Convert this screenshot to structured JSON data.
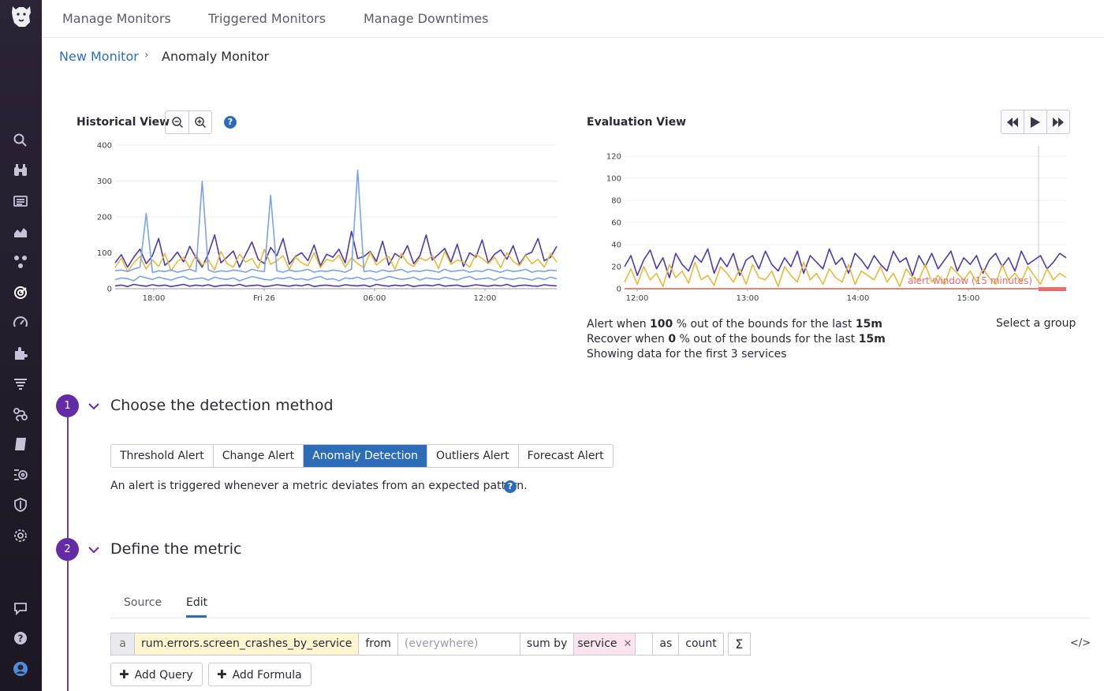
{
  "colors": {
    "brand_purple": "#632ca6",
    "link_blue": "#2d6db8",
    "series_indigo": "#4b3bad",
    "series_yellow": "#e8b93a",
    "series_blue": "#7aa3ea",
    "series_magenta": "#c82fd1",
    "series_orange": "#e8804a",
    "alert_red": "#e56b73"
  },
  "topnav": {
    "tabs": [
      "Manage Monitors",
      "Triggered Monitors",
      "Manage Downtimes"
    ]
  },
  "breadcrumb": {
    "parent": "New Monitor",
    "current": "Anomaly Monitor"
  },
  "historical": {
    "title": "Historical View",
    "zoom_out_icon": "zoom-out-icon",
    "zoom_in_icon": "zoom-in-icon",
    "help": "?"
  },
  "evaluation": {
    "title": "Evaluation View",
    "alert_window_label": "alert window (15 minutes)",
    "alert_line": {
      "prefix": "Alert when",
      "pct": "100",
      "mid": "% out of the bounds for the last",
      "window": "15m"
    },
    "recover_line": {
      "prefix": "Recover when",
      "pct": "0",
      "mid": "% out of the bounds for the last",
      "window": "15m"
    },
    "showing": "Showing data for the first 3 services",
    "select_group": "Select a group"
  },
  "chart_data": [
    {
      "type": "line",
      "y_ticks": [
        "400",
        "300",
        "200",
        "100",
        "0"
      ],
      "x_ticks": [
        "18:00",
        "Fri 26",
        "06:00",
        "12:00"
      ],
      "ylim": [
        0,
        400
      ],
      "series": [
        {
          "values": [
            72,
            95,
            60,
            88,
            110,
            70,
            92,
            140,
            65,
            80,
            102,
            75,
            118,
            86,
            60,
            98,
            150,
            72,
            88,
            105,
            60,
            96,
            130,
            82,
            70,
            115,
            92,
            140,
            68,
            90,
            100,
            78,
            122,
            64,
            96,
            88,
            110,
            72,
            160,
            84,
            90,
            104,
            76,
            132,
            66,
            98,
            86,
            120,
            70,
            92,
            150,
            80,
            96,
            112,
            74,
            124,
            62,
            100,
            88,
            136,
            72,
            96,
            108,
            82,
            120,
            68,
            94,
            102,
            140,
            78,
            88,
            118
          ]
        },
        {
          "values": [
            60,
            85,
            48,
            72,
            90,
            55,
            80,
            62,
            98,
            50,
            76,
            88,
            58,
            94,
            66,
            80,
            52,
            104,
            70,
            60,
            96,
            74,
            84,
            56,
            110,
            68,
            78,
            92,
            54,
            88,
            72,
            64,
            100,
            58,
            82,
            76,
            94,
            60,
            86,
            70,
            58,
            102,
            66,
            80,
            90,
            54,
            98,
            72,
            62,
            86,
            78,
            92,
            56,
            104,
            68,
            80,
            74,
            60,
            96,
            84,
            70,
            88,
            58,
            100,
            76,
            64,
            92,
            70,
            82,
            60,
            98,
            74
          ]
        },
        {
          "values": [
            50,
            52,
            48,
            55,
            60,
            210,
            45,
            50,
            48,
            52,
            46,
            50,
            54,
            48,
            300,
            52,
            46,
            50,
            48,
            52,
            50,
            46,
            54,
            50,
            48,
            260,
            50,
            46,
            52,
            48,
            50,
            54,
            46,
            50,
            48,
            52,
            50,
            46,
            54,
            330,
            48,
            50,
            46,
            52,
            48,
            50,
            54,
            46,
            50,
            48,
            52,
            50,
            46,
            54,
            48,
            50,
            52,
            46,
            50,
            48,
            54,
            50,
            46,
            52,
            48,
            50,
            54,
            46,
            50,
            48,
            52,
            50
          ]
        },
        {
          "values": [
            25,
            30,
            28,
            22,
            35,
            30,
            26,
            32,
            28,
            24,
            30,
            34,
            26,
            28,
            30,
            24,
            32,
            28,
            26,
            30,
            22,
            28,
            34,
            30,
            26,
            24,
            30,
            28,
            32,
            26,
            28,
            24,
            30,
            34,
            26,
            28,
            22,
            30,
            28,
            32,
            26,
            30,
            24,
            28,
            34,
            30,
            26,
            28,
            32,
            24,
            30,
            28,
            26,
            32,
            28,
            24,
            30,
            34,
            26,
            28,
            30,
            24,
            32,
            28,
            26,
            30,
            28,
            24,
            30,
            26,
            32,
            28
          ]
        },
        {
          "values": [
            8,
            10,
            6,
            12,
            9,
            7,
            11,
            8,
            10,
            6,
            9,
            12,
            7,
            10,
            8,
            11,
            6,
            9,
            10,
            8,
            12,
            7,
            9,
            10,
            6,
            8,
            11,
            9,
            7,
            10,
            8,
            12,
            6,
            9,
            10,
            8,
            7,
            11,
            9,
            8,
            10,
            6,
            12,
            9,
            7,
            10,
            8,
            11,
            6,
            9,
            10,
            8,
            12,
            7,
            9,
            10,
            6,
            8,
            11,
            9,
            7,
            10,
            8,
            12,
            6,
            9,
            10,
            8,
            7,
            11,
            9,
            8
          ]
        }
      ]
    },
    {
      "type": "line",
      "y_ticks": [
        "120",
        "100",
        "80",
        "60",
        "40",
        "20",
        "0"
      ],
      "x_ticks": [
        "12:00",
        "13:00",
        "14:00",
        "15:00"
      ],
      "ylim": [
        0,
        120
      ],
      "series": [
        {
          "values": [
            20,
            30,
            12,
            26,
            35,
            18,
            28,
            10,
            32,
            22,
            16,
            30,
            24,
            36,
            14,
            28,
            20,
            32,
            12,
            26,
            30,
            18,
            34,
            22,
            16,
            28,
            20,
            34,
            14,
            30,
            24,
            18,
            36,
            22,
            28,
            14,
            32,
            26,
            18,
            30,
            22,
            16,
            34,
            24,
            28,
            12,
            30,
            20,
            32,
            18,
            26,
            34,
            16,
            28,
            22,
            30,
            14,
            26,
            32,
            20,
            28,
            16,
            34,
            22,
            26,
            30,
            18,
            24,
            32,
            28
          ]
        },
        {
          "values": [
            6,
            18,
            4,
            20,
            8,
            14,
            2,
            22,
            10,
            16,
            5,
            24,
            8,
            12,
            3,
            20,
            14,
            6,
            18,
            4,
            22,
            10,
            8,
            16,
            2,
            20,
            12,
            6,
            24,
            8,
            14,
            4,
            18,
            10,
            6,
            22,
            4,
            16,
            12,
            8,
            20,
            6,
            14,
            2,
            18,
            10,
            8,
            22,
            6,
            12,
            4,
            20,
            14,
            8,
            16,
            6,
            18,
            10,
            4,
            22,
            8,
            14,
            6,
            20,
            12,
            4,
            18,
            8,
            14,
            10
          ]
        },
        {
          "values": [
            0,
            0,
            0,
            0,
            0,
            0,
            0,
            0,
            0,
            0,
            0,
            0,
            0,
            0,
            0,
            0,
            0,
            0,
            0,
            0,
            0,
            0,
            0,
            0,
            0,
            0,
            0,
            0,
            0,
            0,
            0,
            0,
            0,
            0,
            0,
            0,
            0,
            0,
            0,
            0,
            0,
            0,
            0,
            0,
            0,
            0,
            0,
            0,
            0,
            0,
            0,
            0,
            0,
            0,
            0,
            0,
            0,
            0,
            0,
            0,
            0,
            0,
            0,
            0,
            0,
            0,
            0,
            0,
            0,
            0
          ]
        },
        {
          "values": [
            0,
            0,
            0,
            0,
            0,
            0,
            0,
            0,
            0,
            0,
            0,
            0,
            0,
            0,
            0,
            0,
            0,
            0,
            0,
            0,
            0,
            0,
            0,
            0,
            0,
            0,
            0,
            0,
            0,
            0,
            0,
            0,
            0,
            0,
            0,
            0,
            0,
            0,
            0,
            0,
            0,
            0,
            0,
            0,
            0,
            0,
            0,
            0,
            0,
            0,
            0,
            0,
            0,
            0,
            0,
            0,
            0,
            0,
            0,
            0,
            0,
            0,
            0,
            0,
            0,
            0,
            0,
            0,
            0,
            0
          ]
        }
      ]
    }
  ],
  "steps": [
    {
      "number": "1",
      "title": "Choose the detection method",
      "methods": [
        "Threshold Alert",
        "Change Alert",
        "Anomaly Detection",
        "Outliers Alert",
        "Forecast Alert"
      ],
      "selected_method": "Anomaly Detection",
      "description": "An alert is triggered whenever a metric deviates from an expected pattern."
    },
    {
      "number": "2",
      "title": "Define the metric",
      "subtabs": [
        "Source",
        "Edit"
      ],
      "active_subtab": "Edit",
      "query": {
        "letter": "a",
        "metric": "rum.errors.screen_crashes_by_service",
        "from_label": "from",
        "from_placeholder": "(everywhere)",
        "sum_by_label": "sum by",
        "group_tag": "service",
        "as_label": "as",
        "as_value": "count",
        "sigma": "Σ",
        "code_toggle": "</>"
      },
      "add_query": "Add Query",
      "add_formula": "Add Formula"
    }
  ]
}
